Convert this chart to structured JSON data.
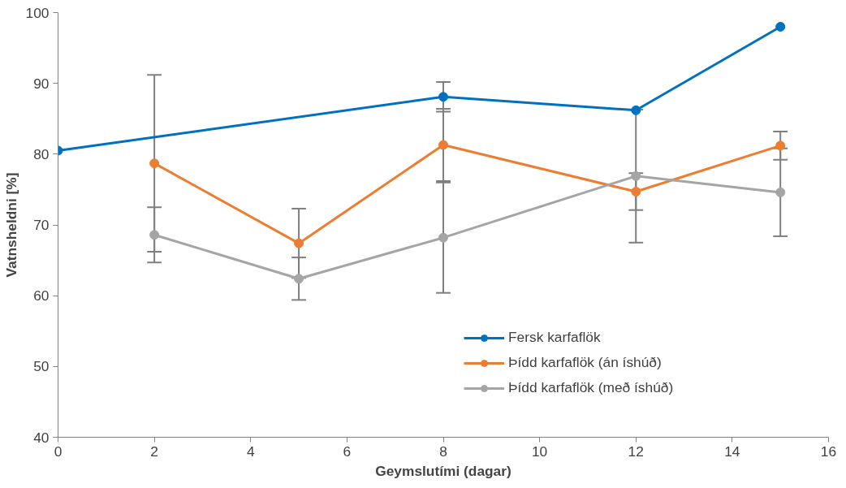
{
  "chart_data": {
    "type": "line",
    "xlabel": "Geymslutími (dagar)",
    "ylabel": "Vatnsheldni [%]",
    "xlim": [
      0,
      16
    ],
    "xticks": [
      0,
      2,
      4,
      6,
      8,
      10,
      12,
      14,
      16
    ],
    "ylim": [
      40,
      100
    ],
    "yticks": [
      40,
      50,
      60,
      70,
      80,
      90,
      100
    ],
    "grid": false,
    "legend": "right",
    "marker": "circle",
    "line_style": "solid",
    "series": [
      {
        "name": "Fersk karfaflök",
        "color": "#0070c0",
        "x": [
          0,
          8,
          12,
          15
        ],
        "values": [
          80.5,
          88.1,
          86.2,
          98.0
        ],
        "errors": [
          null,
          2.1,
          null,
          null
        ]
      },
      {
        "name": "Þídd karfaflök (án íshúð)",
        "color": "#ed7d31",
        "x": [
          2,
          5,
          8,
          12,
          15
        ],
        "values": [
          78.7,
          67.4,
          81.3,
          74.7,
          81.2
        ],
        "errors": [
          12.5,
          4.9,
          5.1,
          2.6,
          2.0
        ]
      },
      {
        "name": "Þídd karfaflök (með íshúð)",
        "color": "#a5a5a5",
        "x": [
          2,
          5,
          8,
          12,
          15
        ],
        "values": [
          68.6,
          62.4,
          68.2,
          76.9,
          74.6
        ],
        "errors": [
          3.9,
          3.0,
          7.8,
          9.4,
          6.2
        ]
      }
    ]
  }
}
